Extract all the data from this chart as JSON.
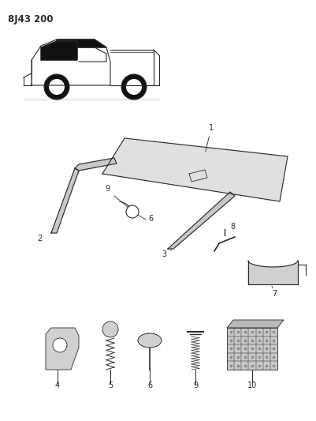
{
  "title": "8J43 200",
  "bg_color": "#ffffff",
  "line_color": "#2a2a2a",
  "fig_width": 4.02,
  "fig_height": 5.33,
  "dpi": 100
}
